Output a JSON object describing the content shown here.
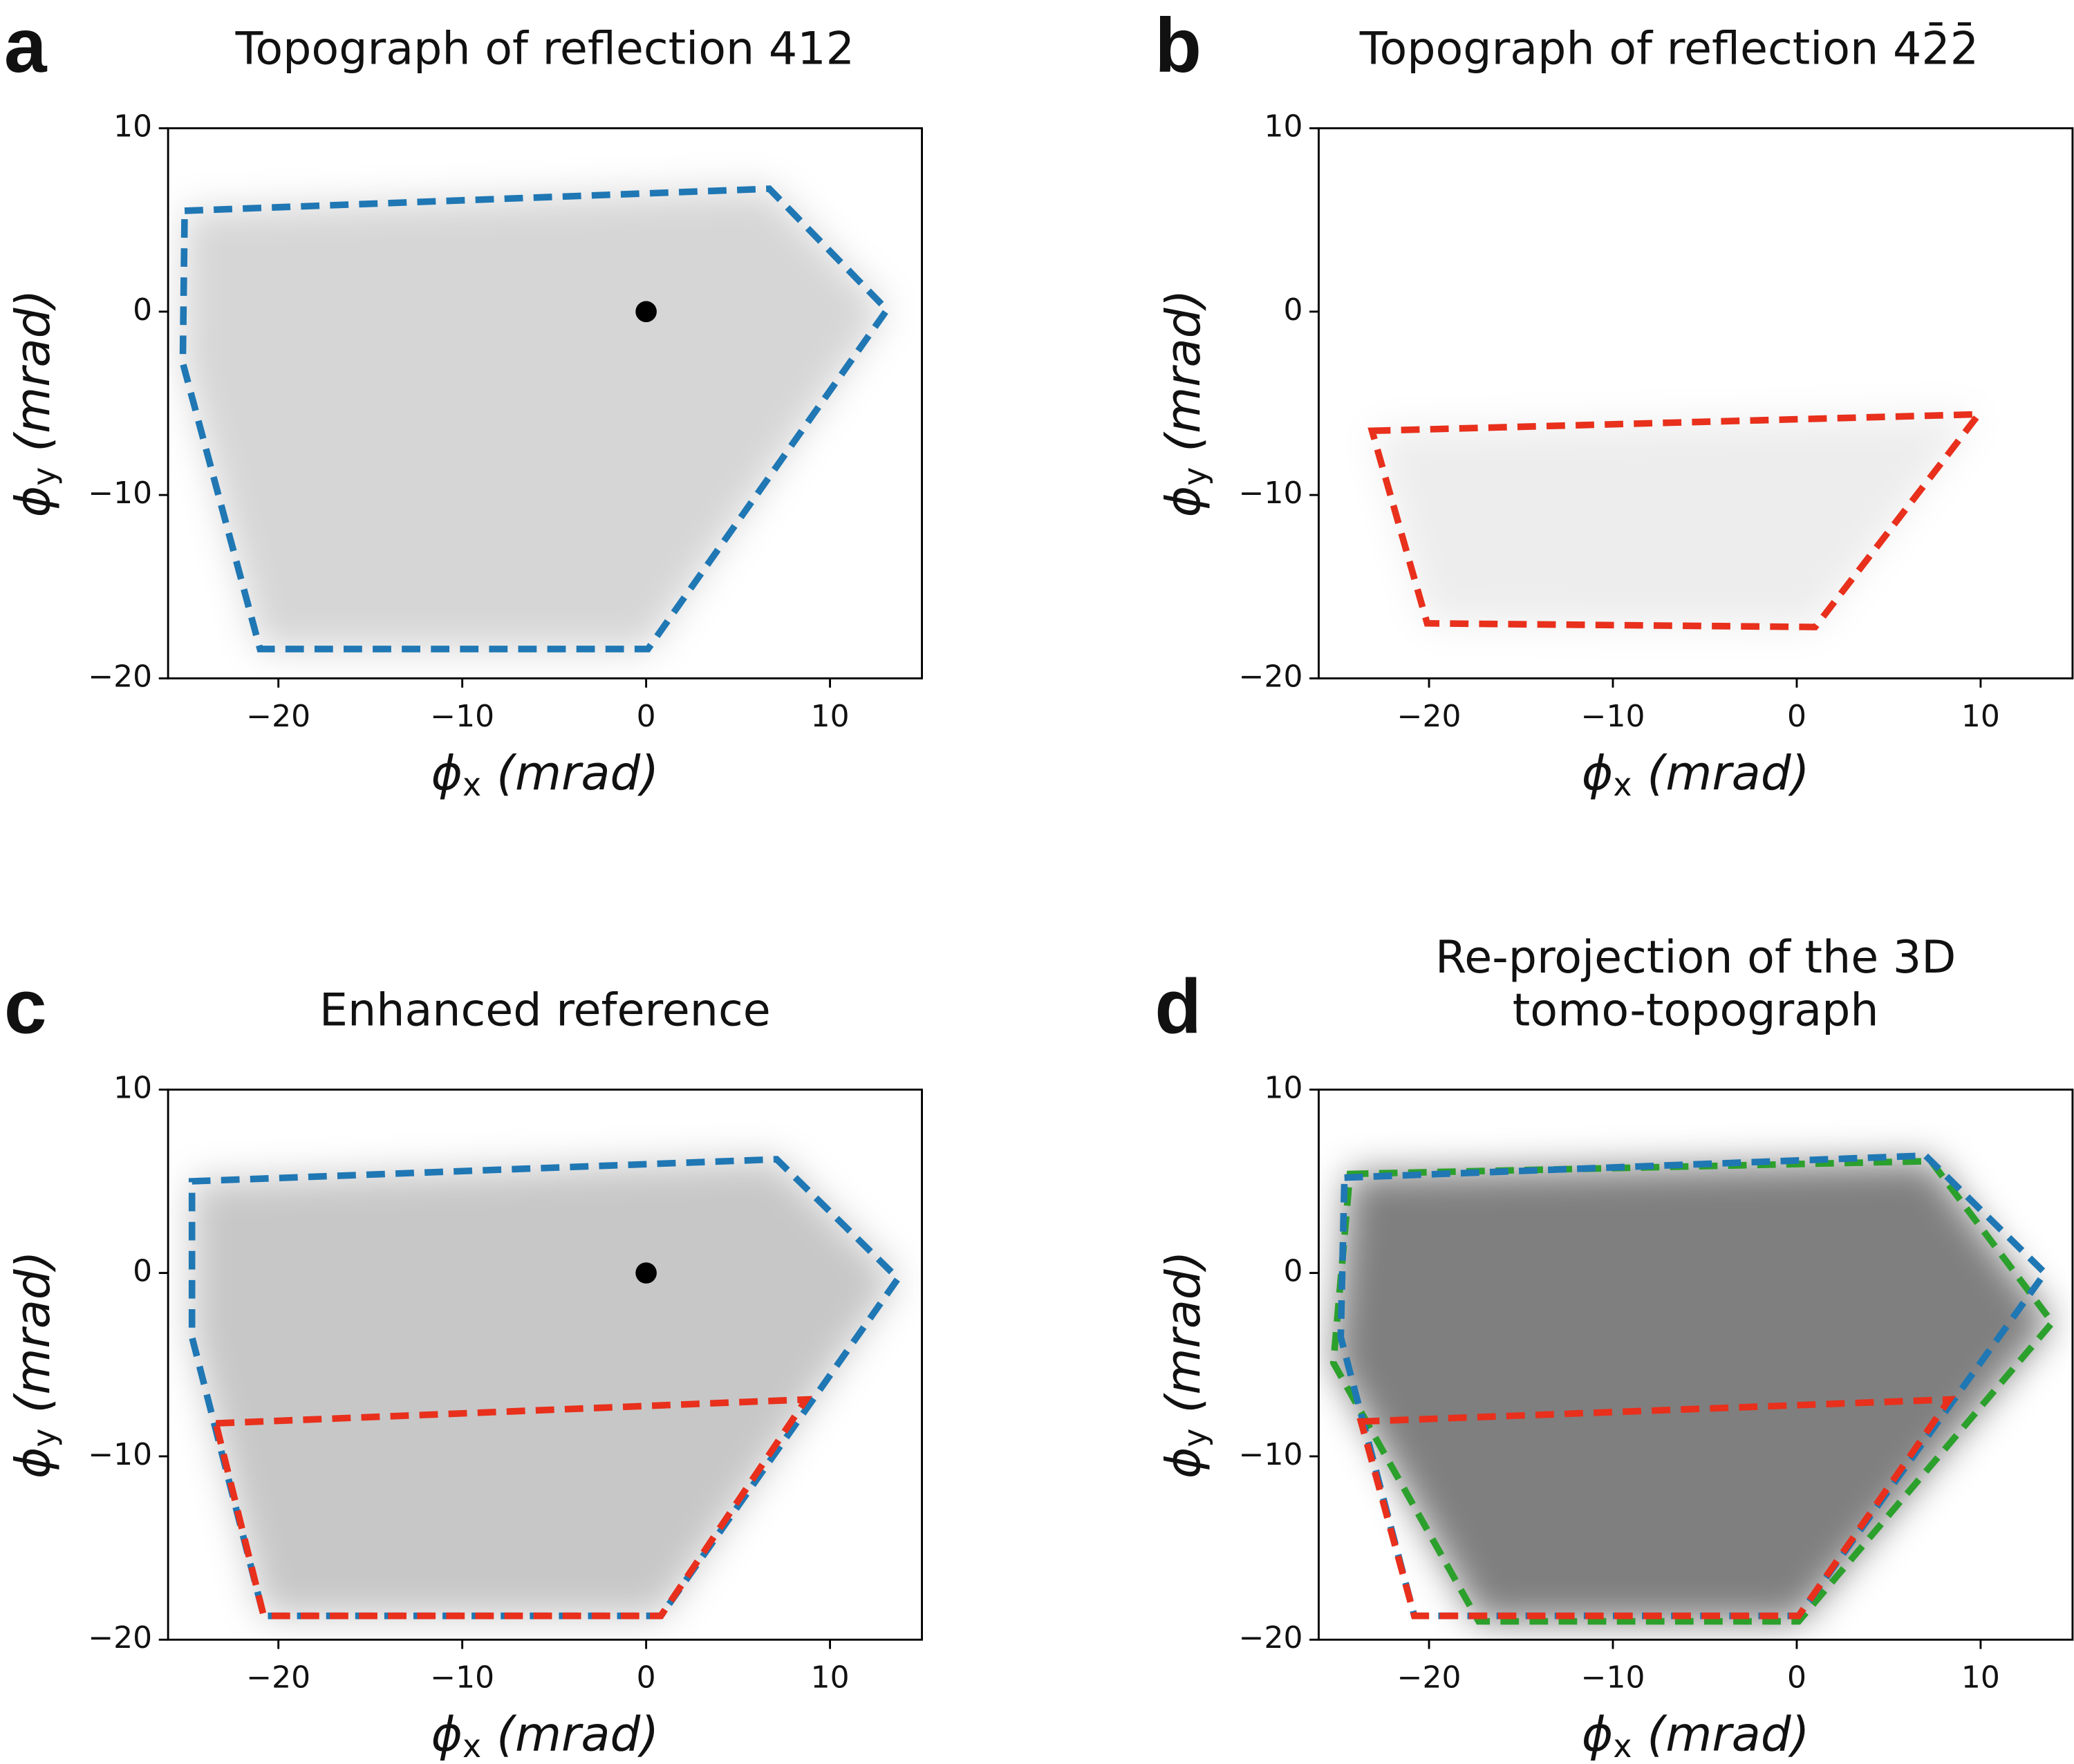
{
  "chart_data": [
    {
      "type": "topograph",
      "letter": "a",
      "title": [
        "Topograph of reflection  412"
      ],
      "xlabel": {
        "symbol": "ϕ",
        "sub": "x",
        "unit": " (mrad)"
      },
      "ylabel": {
        "symbol": "ϕ",
        "sub": "y",
        "unit": " (mrad)"
      },
      "xlim": [
        -26,
        15
      ],
      "ylim": [
        -20,
        10
      ],
      "xticks": [
        {
          "value": -20,
          "label": "−20"
        },
        {
          "value": -10,
          "label": "−10"
        },
        0,
        10
      ],
      "yticks": [
        {
          "value": -20,
          "label": "−20"
        },
        {
          "value": -10,
          "label": "−10"
        },
        0,
        10
      ],
      "series": [
        {
          "color": "#1f77b4",
          "x": [
            -25.1,
            6.7,
            13.1,
            0.1,
            -21.0,
            -25.2
          ],
          "y": [
            5.5,
            6.7,
            0.1,
            -18.4,
            -18.4,
            -2.8
          ]
        }
      ]
    },
    {
      "type": "topograph",
      "letter": "b",
      "title": [
        "Topograph of reflection 42̄2̄"
      ],
      "xlabel": {
        "symbol": "ϕ",
        "sub": "x",
        "unit": " (mrad)"
      },
      "ylabel": {
        "symbol": "ϕ",
        "sub": "y",
        "unit": " (mrad)"
      },
      "xlim": [
        -26,
        15
      ],
      "ylim": [
        -20,
        10
      ],
      "xticks": [
        {
          "value": -20,
          "label": "−20"
        },
        {
          "value": -10,
          "label": "−10"
        },
        0,
        10
      ],
      "yticks": [
        {
          "value": -20,
          "label": "−20"
        },
        {
          "value": -10,
          "label": "−10"
        },
        0,
        10
      ],
      "series": [
        {
          "color": "#e8301c",
          "x": [
            -23.1,
            9.9,
            1.0,
            -20.1
          ],
          "y": [
            -6.5,
            -5.6,
            -17.2,
            -17.0
          ]
        }
      ]
    },
    {
      "type": "topograph",
      "letter": "c",
      "title": [
        "Enhanced reference"
      ],
      "xlabel": {
        "symbol": "ϕ",
        "sub": "x",
        "unit": " (mrad)"
      },
      "ylabel": {
        "symbol": "ϕ",
        "sub": "y",
        "unit": " (mrad)"
      },
      "xlim": [
        -26,
        15
      ],
      "ylim": [
        -20,
        10
      ],
      "xticks": [
        {
          "value": -20,
          "label": "−20"
        },
        {
          "value": -10,
          "label": "−10"
        },
        0,
        10
      ],
      "yticks": [
        {
          "value": -20,
          "label": "−20"
        },
        {
          "value": -10,
          "label": "−10"
        },
        0,
        10
      ],
      "series": [
        {
          "color": "#1f77b4",
          "x": [
            -24.7,
            7.1,
            13.7,
            0.8,
            -20.8,
            -24.7
          ],
          "y": [
            5.0,
            6.2,
            -0.3,
            -18.7,
            -18.7,
            -3.5
          ]
        },
        {
          "color": "#e8301c",
          "x": [
            -23.4,
            8.7,
            0.8,
            -20.8
          ],
          "y": [
            -8.2,
            -6.9,
            -18.7,
            -18.7
          ]
        }
      ]
    },
    {
      "type": "topograph",
      "letter": "d",
      "title": [
        "Re-projection of the 3D",
        "tomo-topograph"
      ],
      "xlabel": {
        "symbol": "ϕ",
        "sub": "x",
        "unit": " (mrad)"
      },
      "ylabel": {
        "symbol": "ϕ",
        "sub": "y",
        "unit": " (mrad)"
      },
      "xlim": [
        -26,
        15
      ],
      "ylim": [
        -20,
        10
      ],
      "xticks": [
        {
          "value": -20,
          "label": "−20"
        },
        {
          "value": -10,
          "label": "−10"
        },
        0,
        10
      ],
      "yticks": [
        {
          "value": -20,
          "label": "−20"
        },
        {
          "value": -10,
          "label": "−10"
        },
        0,
        10
      ],
      "series": [
        {
          "color": "#2ca02c",
          "x": [
            -24.3,
            7.3,
            13.9,
            0.1,
            -17.3,
            -25.2
          ],
          "y": [
            5.4,
            6.1,
            -2.7,
            -19.0,
            -19.0,
            -4.9
          ]
        },
        {
          "color": "#1f77b4",
          "x": [
            -24.6,
            7.0,
            13.5,
            0.1,
            -20.8,
            -24.8
          ],
          "y": [
            5.2,
            6.4,
            0.0,
            -18.7,
            -18.7,
            -3.5
          ]
        },
        {
          "color": "#e8301c",
          "x": [
            -23.7,
            8.3,
            0.1,
            -20.8
          ],
          "y": [
            -8.1,
            -6.9,
            -18.7,
            -18.7
          ]
        }
      ]
    }
  ]
}
